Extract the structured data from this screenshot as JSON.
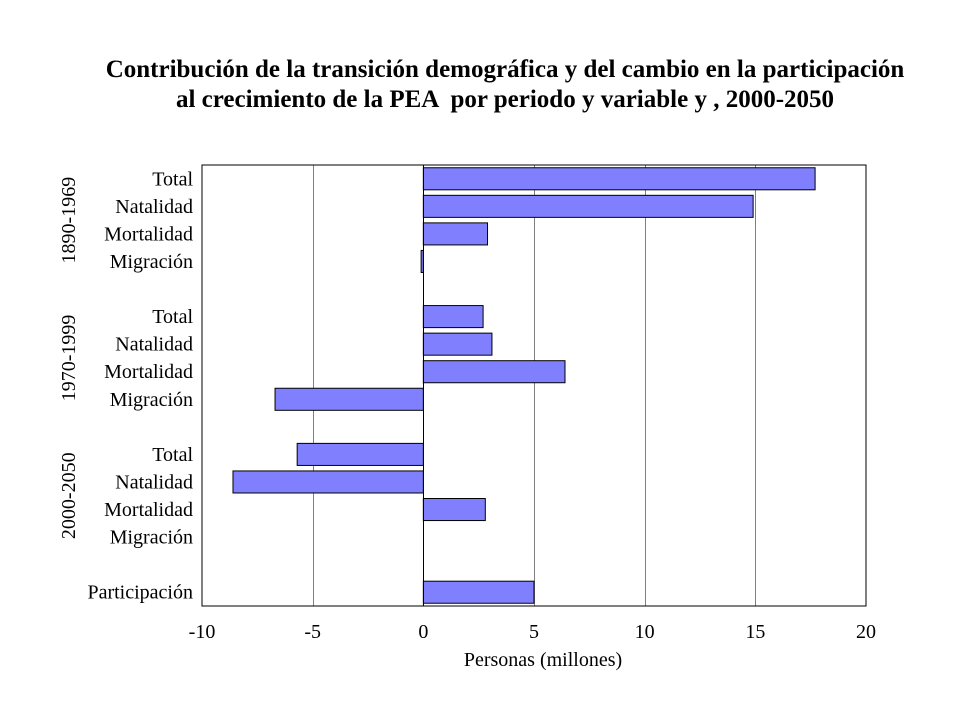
{
  "chart_data": {
    "type": "bar",
    "orientation": "horizontal",
    "title": [
      "Contribución de la transición demográfica y del cambio en la participación",
      "al crecimiento de la PEA  por periodo y variable y , 2000-2050"
    ],
    "xlabel": "Personas (millones)",
    "xlim": [
      -10,
      20
    ],
    "xticks": [
      -10,
      -5,
      0,
      5,
      10,
      15,
      20
    ],
    "grid": "vertical",
    "legend": "none",
    "colors": {
      "bar": "#8080FF",
      "bar_border": "#000000",
      "grid": "#808080",
      "axis": "#000000"
    },
    "groups": [
      {
        "label": "1890-1969",
        "categories": [
          "Total",
          "Natalidad",
          "Mortalidad",
          "Migración"
        ],
        "values": [
          17.7,
          14.9,
          2.9,
          -0.1
        ]
      },
      {
        "label": "1970-1999",
        "categories": [
          "Total",
          "Natalidad",
          "Mortalidad",
          "Migración"
        ],
        "values": [
          2.7,
          3.1,
          6.4,
          -6.7
        ]
      },
      {
        "label": "2000-2050",
        "categories": [
          "Total",
          "Natalidad",
          "Mortalidad",
          "Migración"
        ],
        "values": [
          -5.7,
          -8.6,
          2.8,
          0
        ]
      },
      {
        "categories": [
          "Participación"
        ],
        "values": [
          5.0
        ]
      }
    ]
  }
}
